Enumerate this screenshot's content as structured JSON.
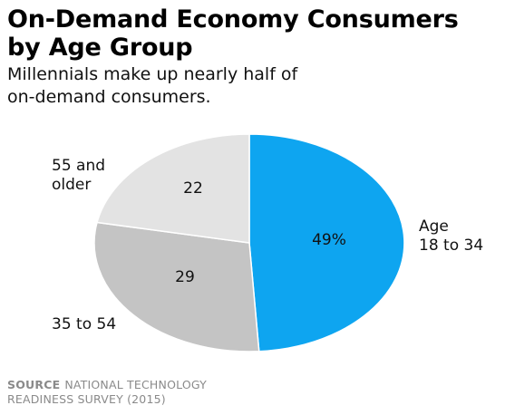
{
  "header": {
    "title_line1": "On-Demand Economy Consumers",
    "title_line2": "by Age Group",
    "subtitle_line1": "Millennials make up nearly half of",
    "subtitle_line2": "on-demand consumers."
  },
  "chart_data": {
    "type": "pie",
    "start_angle_deg": 0,
    "direction": "clockwise",
    "slices": [
      {
        "label_lines": [
          "Age",
          "18 to 34"
        ],
        "value": 49,
        "value_label": "49%",
        "color": "#0ea5f0"
      },
      {
        "label_lines": [
          "35 to 54"
        ],
        "value": 29,
        "value_label": "29",
        "color": "#c4c4c4"
      },
      {
        "label_lines": [
          "55 and",
          "older"
        ],
        "value": 22,
        "value_label": "22",
        "color": "#e3e3e3"
      }
    ]
  },
  "footer": {
    "source_key": "SOURCE",
    "source_line1": "NATIONAL TECHNOLOGY",
    "source_line2": "READINESS SURVEY (2015)"
  }
}
